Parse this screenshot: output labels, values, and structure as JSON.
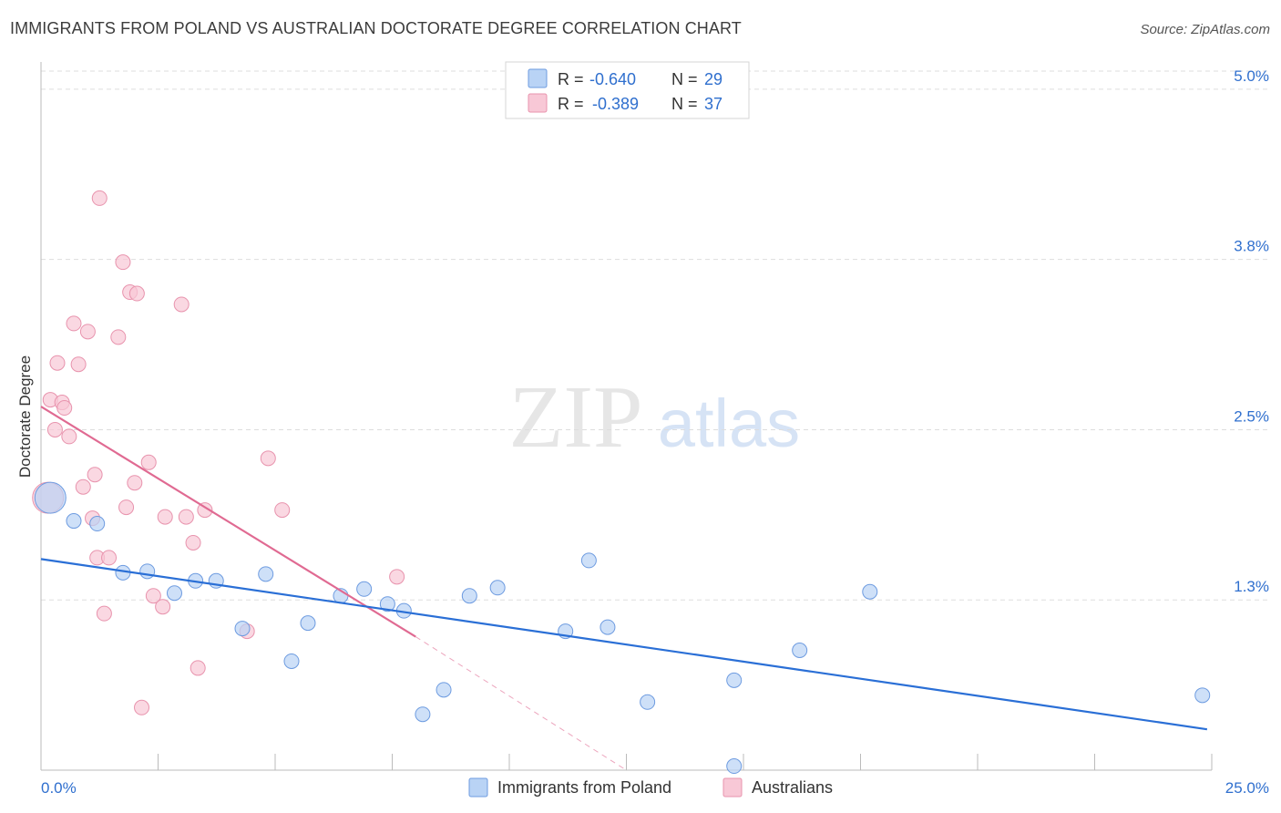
{
  "title": "IMMIGRANTS FROM POLAND VS AUSTRALIAN DOCTORATE DEGREE CORRELATION CHART",
  "source": "Source: ZipAtlas.com",
  "watermark": {
    "zip": "ZIP",
    "atlas": "atlas"
  },
  "colors": {
    "poland_fill": "#b9d3f5",
    "poland_stroke": "#6d9be0",
    "poland_line": "#2a6fd6",
    "aus_fill": "#f8c8d6",
    "aus_stroke": "#e893ad",
    "aus_line": "#e06a92",
    "value_text": "#2f6fce",
    "grid": "#dddddd",
    "axis": "#bbbbbb"
  },
  "legend": {
    "rows": [
      {
        "r_label": "R =",
        "r_value": "-0.640",
        "n_label": "N =",
        "n_value": "29"
      },
      {
        "r_label": "R =",
        "r_value": "-0.389",
        "n_label": "N =",
        "n_value": "37"
      }
    ]
  },
  "chart_data": {
    "type": "scatter",
    "title": "IMMIGRANTS FROM POLAND VS AUSTRALIAN DOCTORATE DEGREE CORRELATION CHART",
    "xlabel": "",
    "ylabel": "Doctorate Degree",
    "xlim": [
      0,
      25
    ],
    "ylim": [
      0,
      5.2
    ],
    "x_tick_labels": [
      "0.0%",
      "25.0%"
    ],
    "y_ticks": [
      {
        "value": 1.25,
        "label": "1.3%"
      },
      {
        "value": 2.5,
        "label": "2.5%"
      },
      {
        "value": 3.75,
        "label": "3.8%"
      },
      {
        "value": 5.0,
        "label": "5.0%"
      }
    ],
    "grid": true,
    "legend_position": "bottom-center",
    "series": [
      {
        "name": "Immigrants from Poland",
        "points": [
          {
            "x": 0.2,
            "y": 2.0,
            "big": true
          },
          {
            "x": 0.7,
            "y": 1.83
          },
          {
            "x": 1.2,
            "y": 1.81
          },
          {
            "x": 1.75,
            "y": 1.45
          },
          {
            "x": 2.27,
            "y": 1.46
          },
          {
            "x": 2.85,
            "y": 1.3
          },
          {
            "x": 3.3,
            "y": 1.39
          },
          {
            "x": 3.74,
            "y": 1.39
          },
          {
            "x": 4.3,
            "y": 1.04
          },
          {
            "x": 4.8,
            "y": 1.44
          },
          {
            "x": 5.35,
            "y": 0.8
          },
          {
            "x": 5.7,
            "y": 1.08
          },
          {
            "x": 6.4,
            "y": 1.28
          },
          {
            "x": 6.9,
            "y": 1.33
          },
          {
            "x": 7.4,
            "y": 1.22
          },
          {
            "x": 7.75,
            "y": 1.17
          },
          {
            "x": 8.15,
            "y": 0.41
          },
          {
            "x": 8.6,
            "y": 0.59
          },
          {
            "x": 9.15,
            "y": 1.28
          },
          {
            "x": 9.75,
            "y": 1.34
          },
          {
            "x": 11.2,
            "y": 1.02
          },
          {
            "x": 11.7,
            "y": 1.54
          },
          {
            "x": 12.1,
            "y": 1.05
          },
          {
            "x": 12.95,
            "y": 0.5
          },
          {
            "x": 14.8,
            "y": 0.66
          },
          {
            "x": 14.8,
            "y": 0.03
          },
          {
            "x": 16.2,
            "y": 0.88
          },
          {
            "x": 17.7,
            "y": 1.31
          },
          {
            "x": 24.8,
            "y": 0.55
          }
        ],
        "trend": {
          "x": [
            0,
            24.9
          ],
          "y": [
            1.55,
            0.3
          ]
        }
      },
      {
        "name": "Australians",
        "points": [
          {
            "x": 0.15,
            "y": 2.0,
            "big": true
          },
          {
            "x": 0.2,
            "y": 2.72
          },
          {
            "x": 0.3,
            "y": 2.5
          },
          {
            "x": 0.35,
            "y": 2.99
          },
          {
            "x": 0.45,
            "y": 2.7
          },
          {
            "x": 0.5,
            "y": 2.66
          },
          {
            "x": 0.6,
            "y": 2.45
          },
          {
            "x": 0.7,
            "y": 3.28
          },
          {
            "x": 0.8,
            "y": 2.98
          },
          {
            "x": 0.9,
            "y": 2.08
          },
          {
            "x": 1.0,
            "y": 3.22
          },
          {
            "x": 1.1,
            "y": 1.85
          },
          {
            "x": 1.15,
            "y": 2.17
          },
          {
            "x": 1.2,
            "y": 1.56
          },
          {
            "x": 1.25,
            "y": 4.2
          },
          {
            "x": 1.45,
            "y": 1.56
          },
          {
            "x": 1.65,
            "y": 3.18
          },
          {
            "x": 1.75,
            "y": 3.73
          },
          {
            "x": 1.82,
            "y": 1.93
          },
          {
            "x": 1.9,
            "y": 3.51
          },
          {
            "x": 2.0,
            "y": 2.11
          },
          {
            "x": 2.05,
            "y": 3.5
          },
          {
            "x": 2.15,
            "y": 0.46
          },
          {
            "x": 2.3,
            "y": 2.26
          },
          {
            "x": 2.4,
            "y": 1.28
          },
          {
            "x": 2.6,
            "y": 1.2
          },
          {
            "x": 2.65,
            "y": 1.86
          },
          {
            "x": 3.0,
            "y": 3.42
          },
          {
            "x": 3.1,
            "y": 1.86
          },
          {
            "x": 3.25,
            "y": 1.67
          },
          {
            "x": 3.35,
            "y": 0.75
          },
          {
            "x": 3.5,
            "y": 1.91
          },
          {
            "x": 1.35,
            "y": 1.15
          },
          {
            "x": 4.4,
            "y": 1.02
          },
          {
            "x": 4.85,
            "y": 2.29
          },
          {
            "x": 5.15,
            "y": 1.91
          },
          {
            "x": 7.6,
            "y": 1.42
          }
        ],
        "trend": {
          "x": [
            0,
            8.0
          ],
          "y": [
            2.67,
            0.98
          ]
        },
        "trend_extension": {
          "x": [
            8.0,
            12.5
          ],
          "y": [
            0.98,
            0.0
          ]
        }
      }
    ]
  }
}
